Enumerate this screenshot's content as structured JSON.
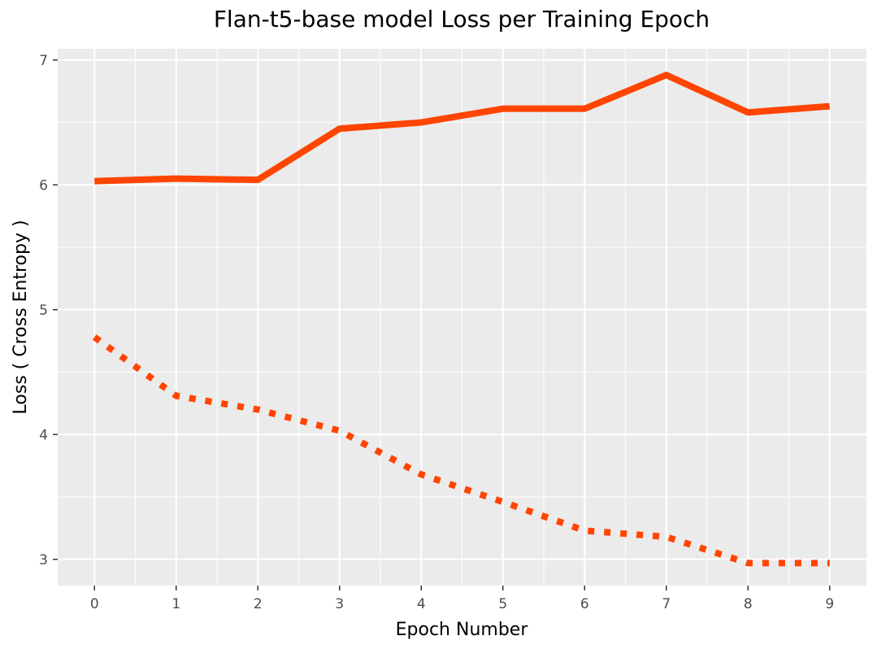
{
  "chart_data": {
    "type": "line",
    "title": "Flan-t5-base model Loss per Training Epoch",
    "xlabel": "Epoch Number",
    "ylabel": "Loss ( Cross Entropy )",
    "x": [
      0,
      1,
      2,
      3,
      4,
      5,
      6,
      7,
      8,
      9
    ],
    "xticks": [
      "0",
      "1",
      "2",
      "3",
      "4",
      "5",
      "6",
      "7",
      "8",
      "9"
    ],
    "yticks": [
      "3",
      "4",
      "5",
      "6",
      "7"
    ],
    "xlim": [
      -0.45,
      9.45
    ],
    "ylim": [
      2.79,
      7.09
    ],
    "grid": true,
    "legend": "none",
    "series": [
      {
        "values": [
          6.03,
          6.05,
          6.04,
          6.45,
          6.5,
          6.61,
          6.61,
          6.88,
          6.58,
          6.63
        ],
        "color": "#ff4500",
        "linestyle": "solid"
      },
      {
        "values": [
          4.78,
          4.31,
          4.2,
          4.03,
          3.68,
          3.46,
          3.23,
          3.18,
          2.97,
          2.97
        ],
        "color": "#ff4500",
        "linestyle": "dotted"
      }
    ]
  }
}
